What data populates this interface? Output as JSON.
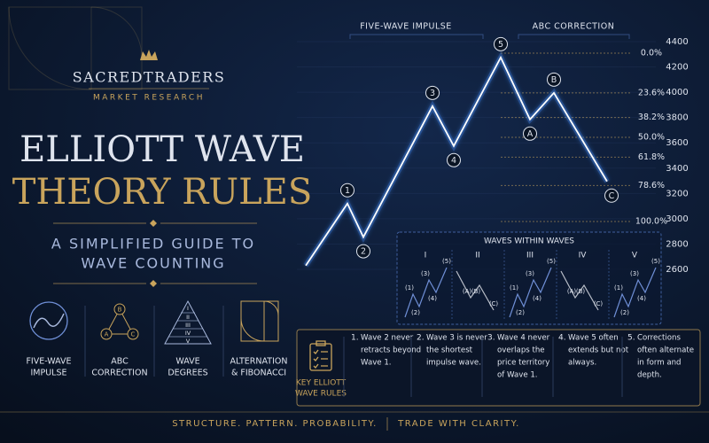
{
  "brand": {
    "name": "SACREDTRADERS",
    "tagline": "MARKET RESEARCH"
  },
  "title": [
    "ELLIOTT WAVE",
    "THEORY RULES"
  ],
  "subtitle": [
    "A SIMPLIFIED GUIDE TO",
    "WAVE COUNTING"
  ],
  "concepts": [
    {
      "label": [
        "FIVE-WAVE",
        "IMPULSE"
      ]
    },
    {
      "label": [
        "ABC",
        "CORRECTION"
      ],
      "marks": [
        "A",
        "B",
        "C"
      ]
    },
    {
      "label": [
        "WAVE",
        "DEGREES"
      ],
      "marks": [
        "I",
        "II",
        "III",
        "IV",
        "V"
      ]
    },
    {
      "label": [
        "ALTERNATION",
        "& FIBONACCI"
      ]
    }
  ],
  "chart_data": {
    "type": "line",
    "section_labels": [
      "FIVE-WAVE IMPULSE",
      "ABC CORRECTION"
    ],
    "categories": [
      null,
      "1",
      "2",
      "3",
      "4",
      "5",
      "A",
      "B",
      "C"
    ],
    "values": [
      2630,
      3120,
      2855,
      3890,
      3575,
      4275,
      3785,
      3995,
      3295
    ],
    "color": "#ffffff",
    "ylim": [
      2600,
      4400
    ],
    "yticks": [
      2600,
      2800,
      3000,
      3200,
      3400,
      3600,
      3800,
      4000,
      4200,
      4400
    ],
    "grid": true,
    "fib_levels": [
      {
        "value": 0,
        "label": "0.0%"
      },
      {
        "value": 23.6,
        "label": "23.6%"
      },
      {
        "value": 38.2,
        "label": "38.2%"
      },
      {
        "value": 50,
        "label": "50.0%"
      },
      {
        "value": 61.8,
        "label": "61.8%"
      },
      {
        "value": 78.6,
        "label": "78.6%"
      },
      {
        "value": 100,
        "label": "100.0%"
      }
    ]
  },
  "subwaves": {
    "title": "WAVES WITHIN WAVES",
    "panels": [
      {
        "label": "I",
        "points": [
          "(1)",
          "(2)",
          "(3)",
          "(4)",
          "(5)"
        ]
      },
      {
        "label": "II",
        "points": [
          "(A)",
          "(B)",
          "(C)"
        ]
      },
      {
        "label": "III",
        "points": [
          "(1)",
          "(2)",
          "(3)",
          "(4)",
          "(5)"
        ]
      },
      {
        "label": "IV",
        "points": [
          "(A)",
          "(B)",
          "(C)"
        ]
      },
      {
        "label": "V",
        "points": [
          "(1)",
          "(2)",
          "(3)",
          "(4)",
          "(5)"
        ]
      }
    ]
  },
  "rules": {
    "title": [
      "KEY ELLIOTT",
      "WAVE RULES"
    ],
    "items": [
      {
        "number": "1.",
        "text": [
          "Wave 2 never",
          "retracts beyond",
          "Wave 1."
        ]
      },
      {
        "number": "2.",
        "text": [
          "Wave 3 is never",
          "the shortest",
          "impulse wave."
        ]
      },
      {
        "number": "3.",
        "text": [
          "Wave 4 never",
          "overlaps the",
          "price territory",
          "of Wave 1."
        ]
      },
      {
        "number": "4.",
        "text": [
          "Wave 5 often",
          "extends but not",
          "always."
        ]
      },
      {
        "number": "5.",
        "text": [
          "Corrections",
          "often alternate",
          "in form and",
          "depth."
        ]
      }
    ]
  },
  "footer": [
    "STRUCTURE. PATTERN. PROBABILITY.",
    "TRADE WITH CLARITY."
  ]
}
